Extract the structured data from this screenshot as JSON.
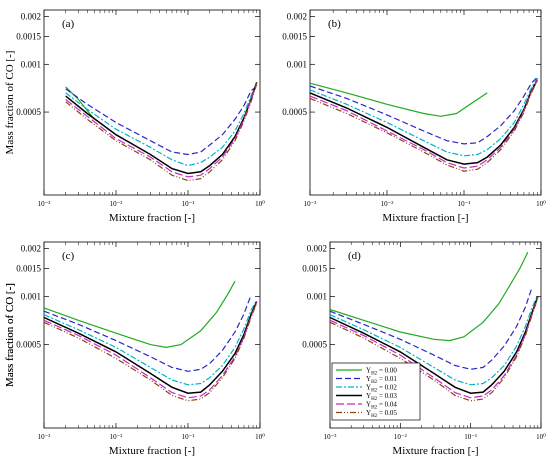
{
  "chart_data": [
    {
      "panel_label": "(a)",
      "type": "line",
      "xscale": "log",
      "yscale": "log",
      "xlim": [
        0.001,
        1
      ],
      "ylim": [
        0.00015,
        0.0022
      ],
      "xlabel": "Mixture fraction [-]",
      "ylabel": "Mass fraction of CO [-]",
      "xticklabels": [
        "10⁻³",
        "10⁻²",
        "10⁻¹",
        "10⁰"
      ],
      "yticks": [
        0.0005,
        0.001,
        0.0015,
        0.002
      ],
      "yticklabels": [
        "0.0005",
        "0.001",
        "0.0015",
        "0.002"
      ],
      "series": [
        {
          "color": "#22aa22",
          "dash": "",
          "x": [
            0.002,
            0.003,
            0.005
          ],
          "y": [
            0.00072,
            0.0006,
            0.00045
          ]
        },
        {
          "color": "#2828c8",
          "dash": "6,3",
          "x": [
            0.002,
            0.004,
            0.01,
            0.03,
            0.06,
            0.1,
            0.15,
            0.2,
            0.3,
            0.45,
            0.6,
            0.75,
            0.9
          ],
          "y": [
            0.0007,
            0.00056,
            0.00043,
            0.00033,
            0.00028,
            0.00027,
            0.00028,
            0.00031,
            0.00036,
            0.00045,
            0.00055,
            0.00068,
            0.00073
          ]
        },
        {
          "color": "#00b4c8",
          "dash": "6,2,2,2",
          "x": [
            0.002,
            0.004,
            0.01,
            0.03,
            0.06,
            0.1,
            0.15,
            0.2,
            0.3,
            0.45,
            0.6,
            0.75,
            0.9
          ],
          "y": [
            0.00066,
            0.00052,
            0.00039,
            0.0003,
            0.00025,
            0.00023,
            0.00024,
            0.00026,
            0.0003,
            0.00038,
            0.00049,
            0.00063,
            0.00077
          ]
        },
        {
          "color": "#000000",
          "dash": "",
          "x": [
            0.002,
            0.004,
            0.01,
            0.03,
            0.06,
            0.1,
            0.15,
            0.2,
            0.3,
            0.45,
            0.6,
            0.75,
            0.9
          ],
          "y": [
            0.00063,
            0.00049,
            0.00036,
            0.00027,
            0.00022,
            0.000205,
            0.00021,
            0.00023,
            0.00027,
            0.00035,
            0.00046,
            0.0006,
            0.00077
          ]
        },
        {
          "color": "#c828c8",
          "dash": "8,3",
          "x": [
            0.002,
            0.004,
            0.01,
            0.03,
            0.06,
            0.1,
            0.15,
            0.2,
            0.3,
            0.45,
            0.6,
            0.75,
            0.9
          ],
          "y": [
            0.0006,
            0.00047,
            0.00034,
            0.00026,
            0.00021,
            0.000195,
            0.0002,
            0.00022,
            0.00026,
            0.00034,
            0.00045,
            0.0006,
            0.00076
          ]
        },
        {
          "color": "#8b4513",
          "dash": "6,2,1,2,1,2",
          "x": [
            0.002,
            0.004,
            0.01,
            0.03,
            0.06,
            0.1,
            0.15,
            0.2,
            0.3,
            0.45,
            0.6,
            0.75,
            0.9
          ],
          "y": [
            0.00058,
            0.00045,
            0.00033,
            0.00025,
            0.0002,
            0.000185,
            0.00019,
            0.00021,
            0.00025,
            0.00033,
            0.00044,
            0.00058,
            0.00075
          ]
        }
      ]
    },
    {
      "panel_label": "(b)",
      "type": "line",
      "xscale": "log",
      "yscale": "log",
      "xlim": [
        0.001,
        1
      ],
      "ylim": [
        0.00015,
        0.0022
      ],
      "xlabel": "Mixture fraction [-]",
      "ylabel": "",
      "xticklabels": [
        "10⁻³",
        "10⁻²",
        "10⁻¹",
        "10⁰"
      ],
      "yticks": [
        0.0005,
        0.001,
        0.0015,
        0.002
      ],
      "yticklabels": [
        "0.0005",
        "0.001",
        "0.0015",
        "0.002"
      ],
      "series": [
        {
          "color": "#22aa22",
          "dash": "",
          "x": [
            0.001,
            0.003,
            0.01,
            0.03,
            0.05,
            0.08,
            0.12,
            0.2
          ],
          "y": [
            0.00076,
            0.00066,
            0.00056,
            0.00049,
            0.00047,
            0.00049,
            0.00056,
            0.00066
          ]
        },
        {
          "color": "#2828c8",
          "dash": "6,3",
          "x": [
            0.001,
            0.003,
            0.01,
            0.03,
            0.06,
            0.1,
            0.15,
            0.2,
            0.3,
            0.45,
            0.6,
            0.75,
            0.9
          ],
          "y": [
            0.00073,
            0.00061,
            0.00048,
            0.00038,
            0.00033,
            0.000315,
            0.00032,
            0.00035,
            0.00041,
            0.00051,
            0.00063,
            0.00076,
            0.00083
          ]
        },
        {
          "color": "#00b4c8",
          "dash": "6,2,2,2",
          "x": [
            0.001,
            0.003,
            0.01,
            0.03,
            0.06,
            0.1,
            0.15,
            0.2,
            0.3,
            0.45,
            0.6,
            0.75,
            0.9
          ],
          "y": [
            0.00069,
            0.00056,
            0.00043,
            0.00033,
            0.00028,
            0.000265,
            0.00027,
            0.00029,
            0.00034,
            0.00043,
            0.00056,
            0.00071,
            0.00082
          ]
        },
        {
          "color": "#000000",
          "dash": "",
          "x": [
            0.001,
            0.003,
            0.01,
            0.03,
            0.06,
            0.1,
            0.15,
            0.2,
            0.3,
            0.45,
            0.6,
            0.75,
            0.9
          ],
          "y": [
            0.00066,
            0.00053,
            0.0004,
            0.0003,
            0.00025,
            0.000235,
            0.00024,
            0.00026,
            0.00031,
            0.0004,
            0.00052,
            0.00068,
            0.0008
          ]
        },
        {
          "color": "#c828c8",
          "dash": "8,3",
          "x": [
            0.001,
            0.003,
            0.01,
            0.03,
            0.06,
            0.1,
            0.15,
            0.2,
            0.3,
            0.45,
            0.6,
            0.75,
            0.9
          ],
          "y": [
            0.00063,
            0.00051,
            0.00038,
            0.00029,
            0.00024,
            0.000222,
            0.000228,
            0.00025,
            0.0003,
            0.00039,
            0.00051,
            0.00067,
            0.0008
          ]
        },
        {
          "color": "#8b4513",
          "dash": "6,2,1,2,1,2",
          "x": [
            0.001,
            0.003,
            0.01,
            0.03,
            0.06,
            0.1,
            0.15,
            0.2,
            0.3,
            0.45,
            0.6,
            0.75,
            0.9
          ],
          "y": [
            0.00061,
            0.00049,
            0.00037,
            0.00028,
            0.000232,
            0.000212,
            0.000218,
            0.00024,
            0.00029,
            0.00038,
            0.0005,
            0.00066,
            0.00079
          ]
        }
      ]
    },
    {
      "panel_label": "(c)",
      "type": "line",
      "xscale": "log",
      "yscale": "log",
      "xlim": [
        0.001,
        1
      ],
      "ylim": [
        0.00015,
        0.0022
      ],
      "xlabel": "Mixture fraction [-]",
      "ylabel": "Mass fraction of CO [-]",
      "xticklabels": [
        "10⁻³",
        "10⁻²",
        "10⁻¹",
        "10⁰"
      ],
      "yticks": [
        0.0005,
        0.001,
        0.0015,
        0.002
      ],
      "yticklabels": [
        "0.0005",
        "0.001",
        "0.0015",
        "0.002"
      ],
      "series": [
        {
          "color": "#22aa22",
          "dash": "",
          "x": [
            0.001,
            0.003,
            0.01,
            0.03,
            0.05,
            0.08,
            0.15,
            0.25,
            0.35,
            0.45
          ],
          "y": [
            0.00085,
            0.00071,
            0.00059,
            0.0005,
            0.00048,
            0.0005,
            0.00061,
            0.0008,
            0.00102,
            0.00125
          ]
        },
        {
          "color": "#2828c8",
          "dash": "6,3",
          "x": [
            0.001,
            0.003,
            0.01,
            0.03,
            0.06,
            0.1,
            0.15,
            0.2,
            0.3,
            0.45,
            0.6,
            0.75
          ],
          "y": [
            0.00081,
            0.00067,
            0.00053,
            0.00042,
            0.00036,
            0.00034,
            0.00035,
            0.00038,
            0.00046,
            0.0006,
            0.00078,
            0.00102
          ]
        },
        {
          "color": "#00b4c8",
          "dash": "6,2,2,2",
          "x": [
            0.001,
            0.003,
            0.01,
            0.03,
            0.06,
            0.1,
            0.15,
            0.2,
            0.3,
            0.45,
            0.6,
            0.75,
            0.9
          ],
          "y": [
            0.00077,
            0.00062,
            0.00048,
            0.00036,
            0.0003,
            0.00028,
            0.000285,
            0.00031,
            0.00037,
            0.00048,
            0.00063,
            0.00082,
            0.00095
          ]
        },
        {
          "color": "#000000",
          "dash": "",
          "x": [
            0.001,
            0.003,
            0.01,
            0.03,
            0.06,
            0.1,
            0.15,
            0.2,
            0.3,
            0.45,
            0.6,
            0.75,
            0.9
          ],
          "y": [
            0.00074,
            0.00059,
            0.00045,
            0.00033,
            0.00027,
            0.000248,
            0.000252,
            0.00028,
            0.00034,
            0.00044,
            0.00058,
            0.00077,
            0.00093
          ]
        },
        {
          "color": "#c828c8",
          "dash": "8,3",
          "x": [
            0.001,
            0.003,
            0.01,
            0.03,
            0.06,
            0.1,
            0.15,
            0.2,
            0.3,
            0.45,
            0.6,
            0.75,
            0.9
          ],
          "y": [
            0.00071,
            0.00057,
            0.00043,
            0.00031,
            0.00025,
            0.000232,
            0.000238,
            0.00026,
            0.00032,
            0.00042,
            0.00056,
            0.00075,
            0.00092
          ]
        },
        {
          "color": "#8b4513",
          "dash": "6,2,1,2,1,2",
          "x": [
            0.001,
            0.003,
            0.01,
            0.03,
            0.06,
            0.1,
            0.15,
            0.2,
            0.3,
            0.45,
            0.6,
            0.75,
            0.9
          ],
          "y": [
            0.00069,
            0.00055,
            0.00041,
            0.0003,
            0.00024,
            0.000222,
            0.000228,
            0.00025,
            0.00031,
            0.00041,
            0.00055,
            0.00074,
            0.00091
          ]
        }
      ]
    },
    {
      "panel_label": "(d)",
      "type": "line",
      "xscale": "log",
      "yscale": "log",
      "xlim": [
        0.001,
        1
      ],
      "ylim": [
        0.00015,
        0.0022
      ],
      "xlabel": "Mixture fraction [-]",
      "ylabel": "Mass fraction of CO [-]",
      "xticklabels": [
        "10⁻³",
        "10⁻²",
        "10⁻¹",
        "10⁰"
      ],
      "yticks": [
        0.0005,
        0.001,
        0.0015,
        0.002
      ],
      "yticklabels": [
        "0.0005",
        "0.001",
        "0.0015",
        "0.002"
      ],
      "legend": {
        "placement": "lower-left",
        "entries": [
          "Y",
          "Y",
          "Y",
          "Y",
          "Y",
          "Y"
        ],
        "subscripts": [
          "H2",
          "H2",
          "H2",
          "H2",
          "H2",
          "H2"
        ],
        "values": [
          "= 0.00",
          "= 0.01",
          "= 0.02",
          "= 0.03",
          "= 0.04",
          "= 0.05"
        ]
      },
      "series": [
        {
          "color": "#22aa22",
          "dash": "",
          "x": [
            0.001,
            0.003,
            0.01,
            0.03,
            0.05,
            0.08,
            0.15,
            0.25,
            0.35,
            0.5,
            0.65
          ],
          "y": [
            0.00083,
            0.00071,
            0.0006,
            0.00054,
            0.00053,
            0.00056,
            0.00069,
            0.0009,
            0.00115,
            0.0015,
            0.0019
          ]
        },
        {
          "color": "#2828c8",
          "dash": "6,3",
          "x": [
            0.001,
            0.003,
            0.01,
            0.03,
            0.06,
            0.1,
            0.15,
            0.2,
            0.3,
            0.45,
            0.6,
            0.75
          ],
          "y": [
            0.00081,
            0.00067,
            0.00054,
            0.00043,
            0.00037,
            0.00035,
            0.00036,
            0.0004,
            0.00049,
            0.00065,
            0.00086,
            0.00115
          ]
        },
        {
          "color": "#00b4c8",
          "dash": "6,2,2,2",
          "x": [
            0.001,
            0.003,
            0.01,
            0.03,
            0.06,
            0.1,
            0.15,
            0.2,
            0.3,
            0.45,
            0.6,
            0.75,
            0.9
          ],
          "y": [
            0.00077,
            0.00062,
            0.00048,
            0.00036,
            0.0003,
            0.00028,
            0.000285,
            0.00031,
            0.00037,
            0.00049,
            0.00065,
            0.00086,
            0.00102
          ]
        },
        {
          "color": "#000000",
          "dash": "",
          "x": [
            0.001,
            0.003,
            0.01,
            0.03,
            0.06,
            0.1,
            0.15,
            0.2,
            0.3,
            0.45,
            0.6,
            0.75,
            0.9
          ],
          "y": [
            0.00074,
            0.00059,
            0.00045,
            0.00033,
            0.00027,
            0.000248,
            0.000252,
            0.00028,
            0.00034,
            0.00045,
            0.0006,
            0.0008,
            0.001
          ]
        },
        {
          "color": "#c828c8",
          "dash": "8,3",
          "x": [
            0.001,
            0.003,
            0.01,
            0.03,
            0.06,
            0.1,
            0.15,
            0.2,
            0.3,
            0.45,
            0.6,
            0.75,
            0.9
          ],
          "y": [
            0.00071,
            0.00057,
            0.00043,
            0.00031,
            0.00025,
            0.000232,
            0.000238,
            0.00026,
            0.00032,
            0.00043,
            0.00058,
            0.00078,
            0.00099
          ]
        },
        {
          "color": "#8b4513",
          "dash": "6,2,1,2,1,2",
          "x": [
            0.001,
            0.003,
            0.01,
            0.03,
            0.06,
            0.1,
            0.15,
            0.2,
            0.3,
            0.45,
            0.6,
            0.75,
            0.9
          ],
          "y": [
            0.00069,
            0.00055,
            0.00041,
            0.0003,
            0.00024,
            0.000222,
            0.000228,
            0.00025,
            0.00031,
            0.00042,
            0.00057,
            0.00077,
            0.00098
          ]
        }
      ]
    }
  ]
}
